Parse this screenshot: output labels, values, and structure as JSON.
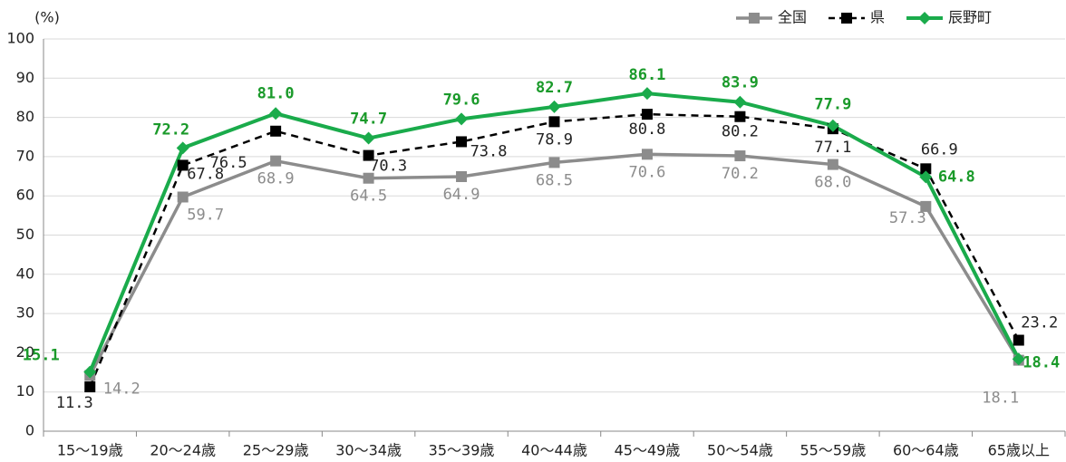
{
  "chart_data": {
    "type": "line",
    "y_label": "(%)",
    "categories": [
      "15～19歳",
      "20～24歳",
      "25～29歳",
      "30～34歳",
      "35～39歳",
      "40～44歳",
      "45～49歳",
      "50～54歳",
      "55～59歳",
      "60～64歳",
      "65歳以上"
    ],
    "series": [
      {
        "name": "全国",
        "color": "#8c8c8c",
        "values": [
          14.2,
          59.7,
          68.9,
          64.5,
          64.9,
          68.5,
          70.6,
          70.2,
          68.0,
          57.3,
          18.1
        ],
        "value_labels": [
          "14.2",
          "59.7",
          "68.9",
          "64.5",
          "64.9",
          "68.5",
          "70.6",
          "70.2",
          "68.0",
          "57.3",
          "18.1"
        ]
      },
      {
        "name": "県",
        "color": "#000000",
        "values": [
          11.3,
          67.8,
          76.5,
          70.3,
          73.8,
          78.9,
          80.8,
          80.2,
          77.1,
          66.9,
          23.2
        ],
        "value_labels": [
          "11.3",
          "67.8",
          "76.5",
          "70.3",
          "73.8",
          "78.9",
          "80.8",
          "80.2",
          "77.1",
          "66.9",
          "23.2"
        ]
      },
      {
        "name": "辰野町",
        "color": "#1aab4b",
        "values": [
          15.1,
          72.2,
          81.0,
          74.7,
          79.6,
          82.7,
          86.1,
          83.9,
          77.9,
          64.8,
          18.4
        ],
        "value_labels": [
          "15.1",
          "72.2",
          "81.0",
          "74.7",
          "79.6",
          "82.7",
          "86.1",
          "83.9",
          "77.9",
          "64.8",
          "18.4"
        ]
      }
    ],
    "ylim": [
      0,
      100
    ],
    "yticks": [
      0,
      10,
      20,
      30,
      40,
      50,
      60,
      70,
      80,
      90,
      100
    ],
    "grid": true,
    "legend": "top-right"
  }
}
